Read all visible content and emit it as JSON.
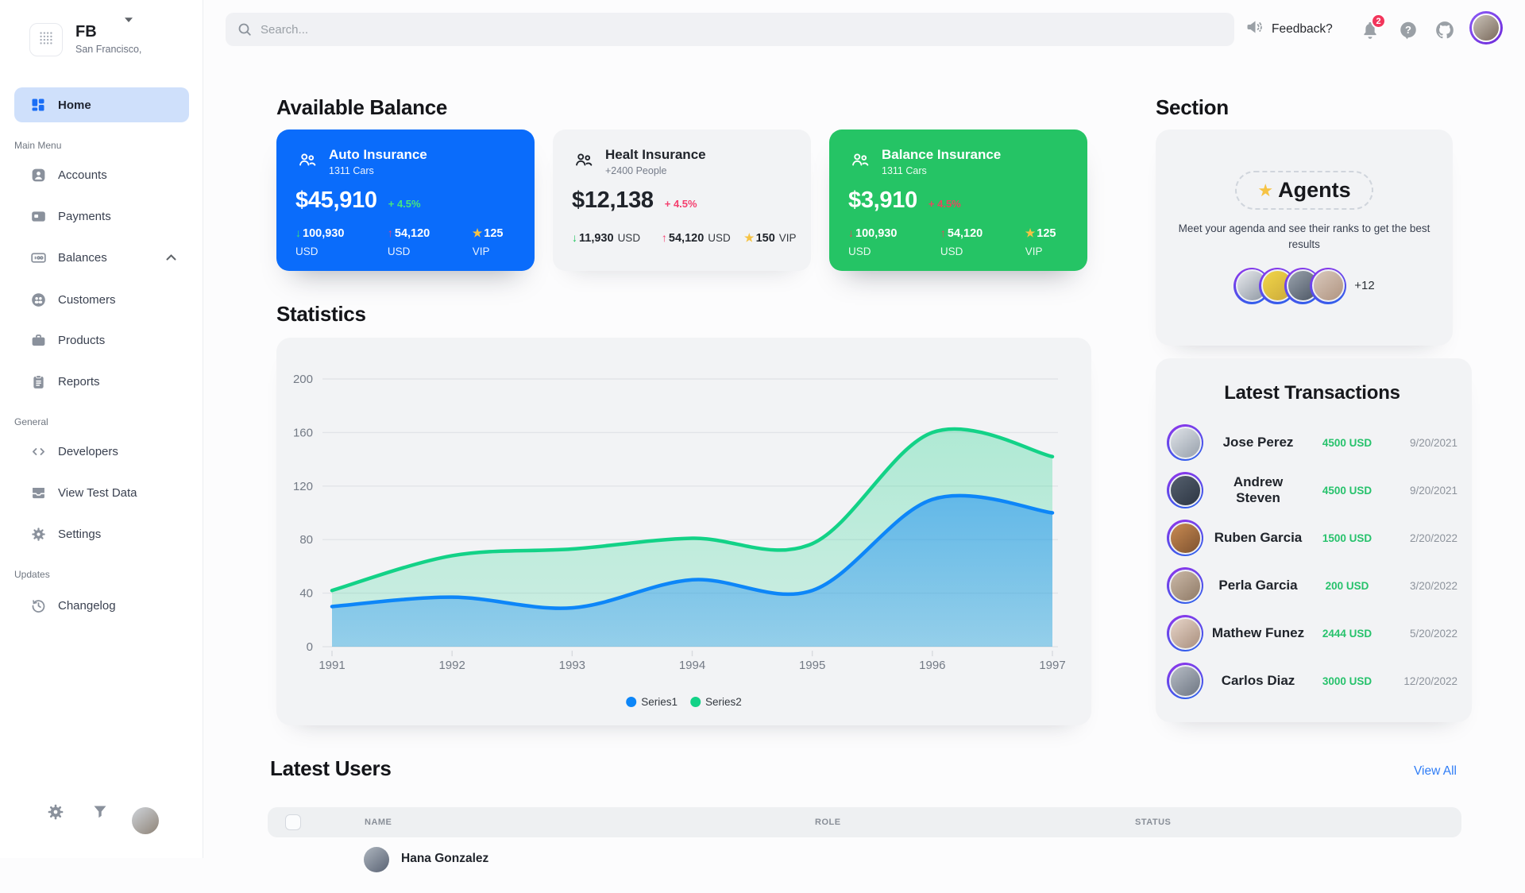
{
  "brand": {
    "name": "FB",
    "location": "San Francisco,"
  },
  "topbar": {
    "search_placeholder": "Search...",
    "feedback_label": "Feedback?",
    "notification_count": "2"
  },
  "sidebar": {
    "home_label": "Home",
    "sections": [
      {
        "label": "Main Menu",
        "items": [
          {
            "label": "Accounts"
          },
          {
            "label": "Payments"
          },
          {
            "label": "Balances"
          },
          {
            "label": "Customers"
          },
          {
            "label": "Products"
          },
          {
            "label": "Reports"
          }
        ]
      },
      {
        "label": "General",
        "items": [
          {
            "label": "Developers"
          },
          {
            "label": "View Test Data"
          },
          {
            "label": "Settings"
          }
        ]
      },
      {
        "label": "Updates",
        "items": [
          {
            "label": "Changelog"
          }
        ]
      }
    ]
  },
  "balance": {
    "heading": "Available Balance",
    "cards": [
      {
        "bg": "#0a6cfb",
        "title": "Auto Insurance",
        "subtitle": "1311 Cars",
        "amount": "$45,910",
        "delta": "+ 4.5%",
        "delta_color": "#46e57f",
        "stats": [
          {
            "glyph": "↓",
            "color": "#3ae374",
            "value": "100,930",
            "unit": "USD"
          },
          {
            "glyph": "↑",
            "color": "#f43f7d",
            "value": "54,120",
            "unit": "USD"
          },
          {
            "glyph": "★",
            "color": "#f6c344",
            "value": "125",
            "unit": "VIP"
          }
        ]
      },
      {
        "bg": "#f2f3f5",
        "title": "Healt Insurance",
        "subtitle": "+2400 People",
        "amount": "$12,138",
        "delta": "+ 4.5%",
        "delta_color": "#f43f6e",
        "stats": [
          {
            "glyph": "↓",
            "color": "#22c55e",
            "value": "11,930",
            "unit": "USD"
          },
          {
            "glyph": "↑",
            "color": "#f43f6e",
            "value": "54,120",
            "unit": "USD"
          },
          {
            "glyph": "★",
            "color": "#f6c344",
            "value": "150",
            "unit": "VIP"
          }
        ]
      },
      {
        "bg": "#25c465",
        "title": "Balance Insurance",
        "subtitle": "1311 Cars",
        "amount": "$3,910",
        "delta": "+ 4.5%",
        "delta_color": "#e8485f",
        "stats": [
          {
            "glyph": "↓",
            "color": "#e8485f",
            "value": "100,930",
            "unit": "USD"
          },
          {
            "glyph": "↑",
            "color": "#e8485f",
            "value": "54,120",
            "unit": "USD"
          },
          {
            "glyph": "★",
            "color": "#f6c344",
            "value": "125",
            "unit": "VIP"
          }
        ]
      }
    ]
  },
  "statistics_heading": "Statistics",
  "chart_data": {
    "type": "area",
    "title": "Statistics",
    "x": [
      "1991",
      "1992",
      "1993",
      "1994",
      "1995",
      "1996",
      "1997"
    ],
    "series": [
      {
        "name": "Series1",
        "color": "#0d86f8",
        "values": [
          30,
          37,
          29,
          50,
          42,
          110,
          100
        ]
      },
      {
        "name": "Series2",
        "color": "#13d287",
        "values": [
          42,
          68,
          73,
          81,
          77,
          160,
          142
        ]
      }
    ],
    "ylim": [
      0,
      200
    ],
    "yticks": [
      0,
      40,
      80,
      120,
      160,
      200
    ],
    "grid": true,
    "legend_position": "bottom"
  },
  "section": {
    "heading": "Section",
    "badge_star": "★",
    "badge_label": "Agents",
    "description": "Meet your agenda and see their ranks to get the best results",
    "more_label": "+12"
  },
  "transactions": {
    "title": "Latest Transactions",
    "amount_color": "#27c26c",
    "rows": [
      {
        "name": "Jose Perez",
        "amount": "4500 USD",
        "date": "9/20/2021"
      },
      {
        "name": "Andrew Steven",
        "amount": "4500 USD",
        "date": "9/20/2021"
      },
      {
        "name": "Ruben Garcia",
        "amount": "1500 USD",
        "date": "2/20/2022"
      },
      {
        "name": "Perla Garcia",
        "amount": "200 USD",
        "date": "3/20/2022"
      },
      {
        "name": "Mathew Funez",
        "amount": "2444 USD",
        "date": "5/20/2022"
      },
      {
        "name": "Carlos Diaz",
        "amount": "3000 USD",
        "date": "12/20/2022"
      }
    ]
  },
  "latest_users": {
    "heading": "Latest Users",
    "view_all_label": "View All",
    "columns": [
      "NAME",
      "ROLE",
      "STATUS"
    ],
    "rows": [
      {
        "name": "Hana Gonzalez"
      }
    ]
  }
}
